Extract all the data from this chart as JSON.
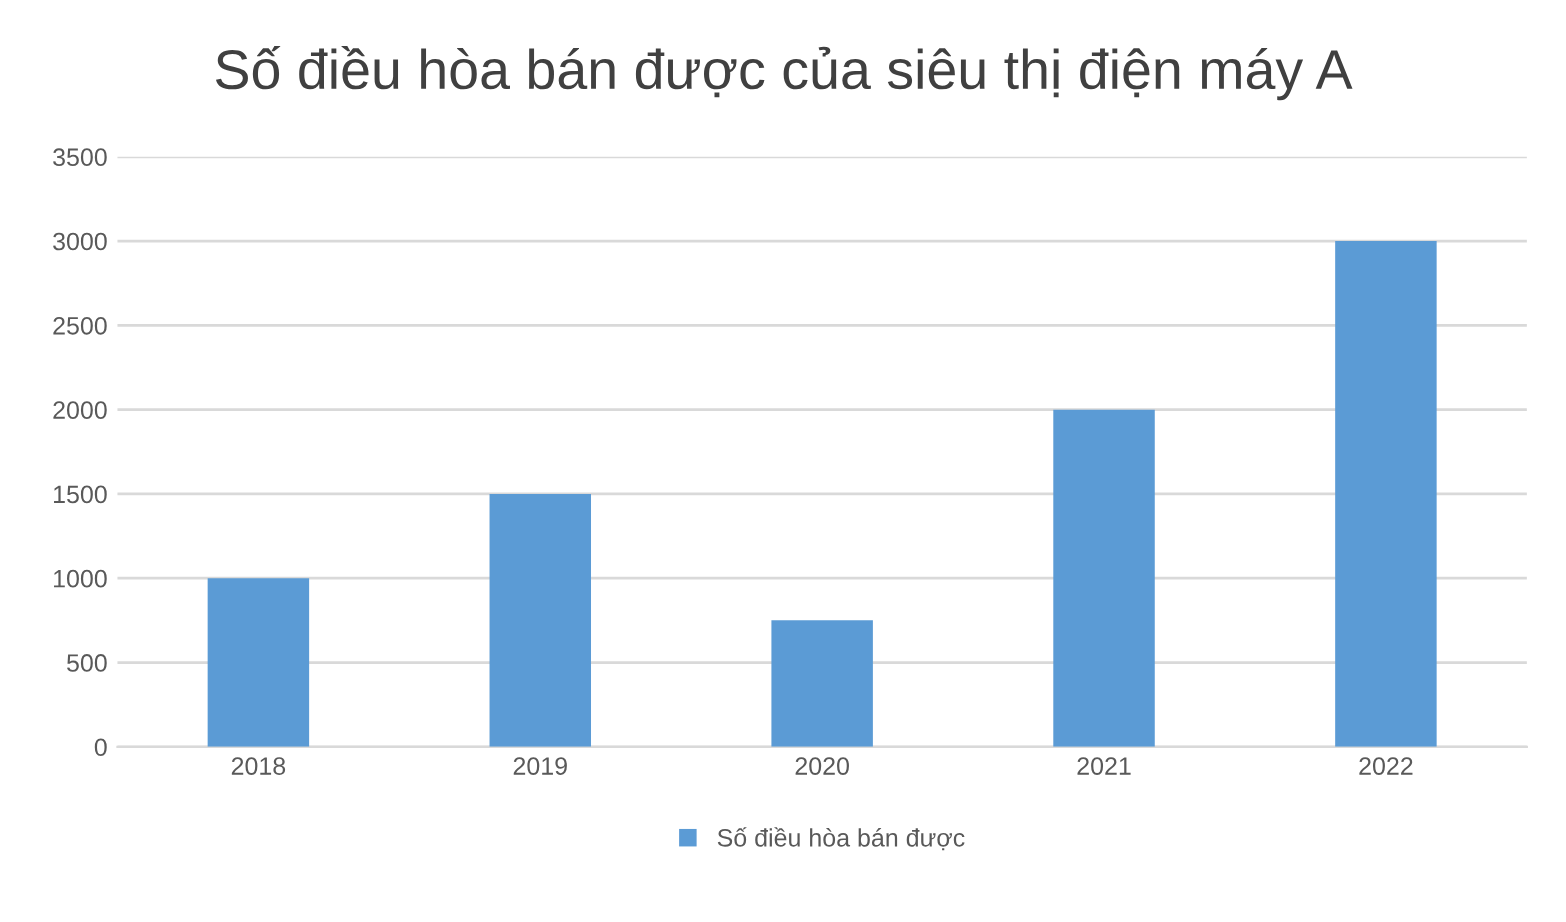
{
  "chart_data": {
    "type": "bar",
    "title": "Số điều hòa bán được của siêu thị điện máy A",
    "categories": [
      "2018",
      "2019",
      "2020",
      "2021",
      "2022"
    ],
    "series": [
      {
        "name": "Số điều hòa bán được",
        "color": "#5b9bd5",
        "values": [
          1000,
          1500,
          750,
          2000,
          3000
        ]
      }
    ],
    "ylim": [
      0,
      3500
    ],
    "yticks": [
      0,
      500,
      1000,
      1500,
      2000,
      2500,
      3000,
      3500
    ],
    "grid": "y",
    "legend": "bottom"
  }
}
